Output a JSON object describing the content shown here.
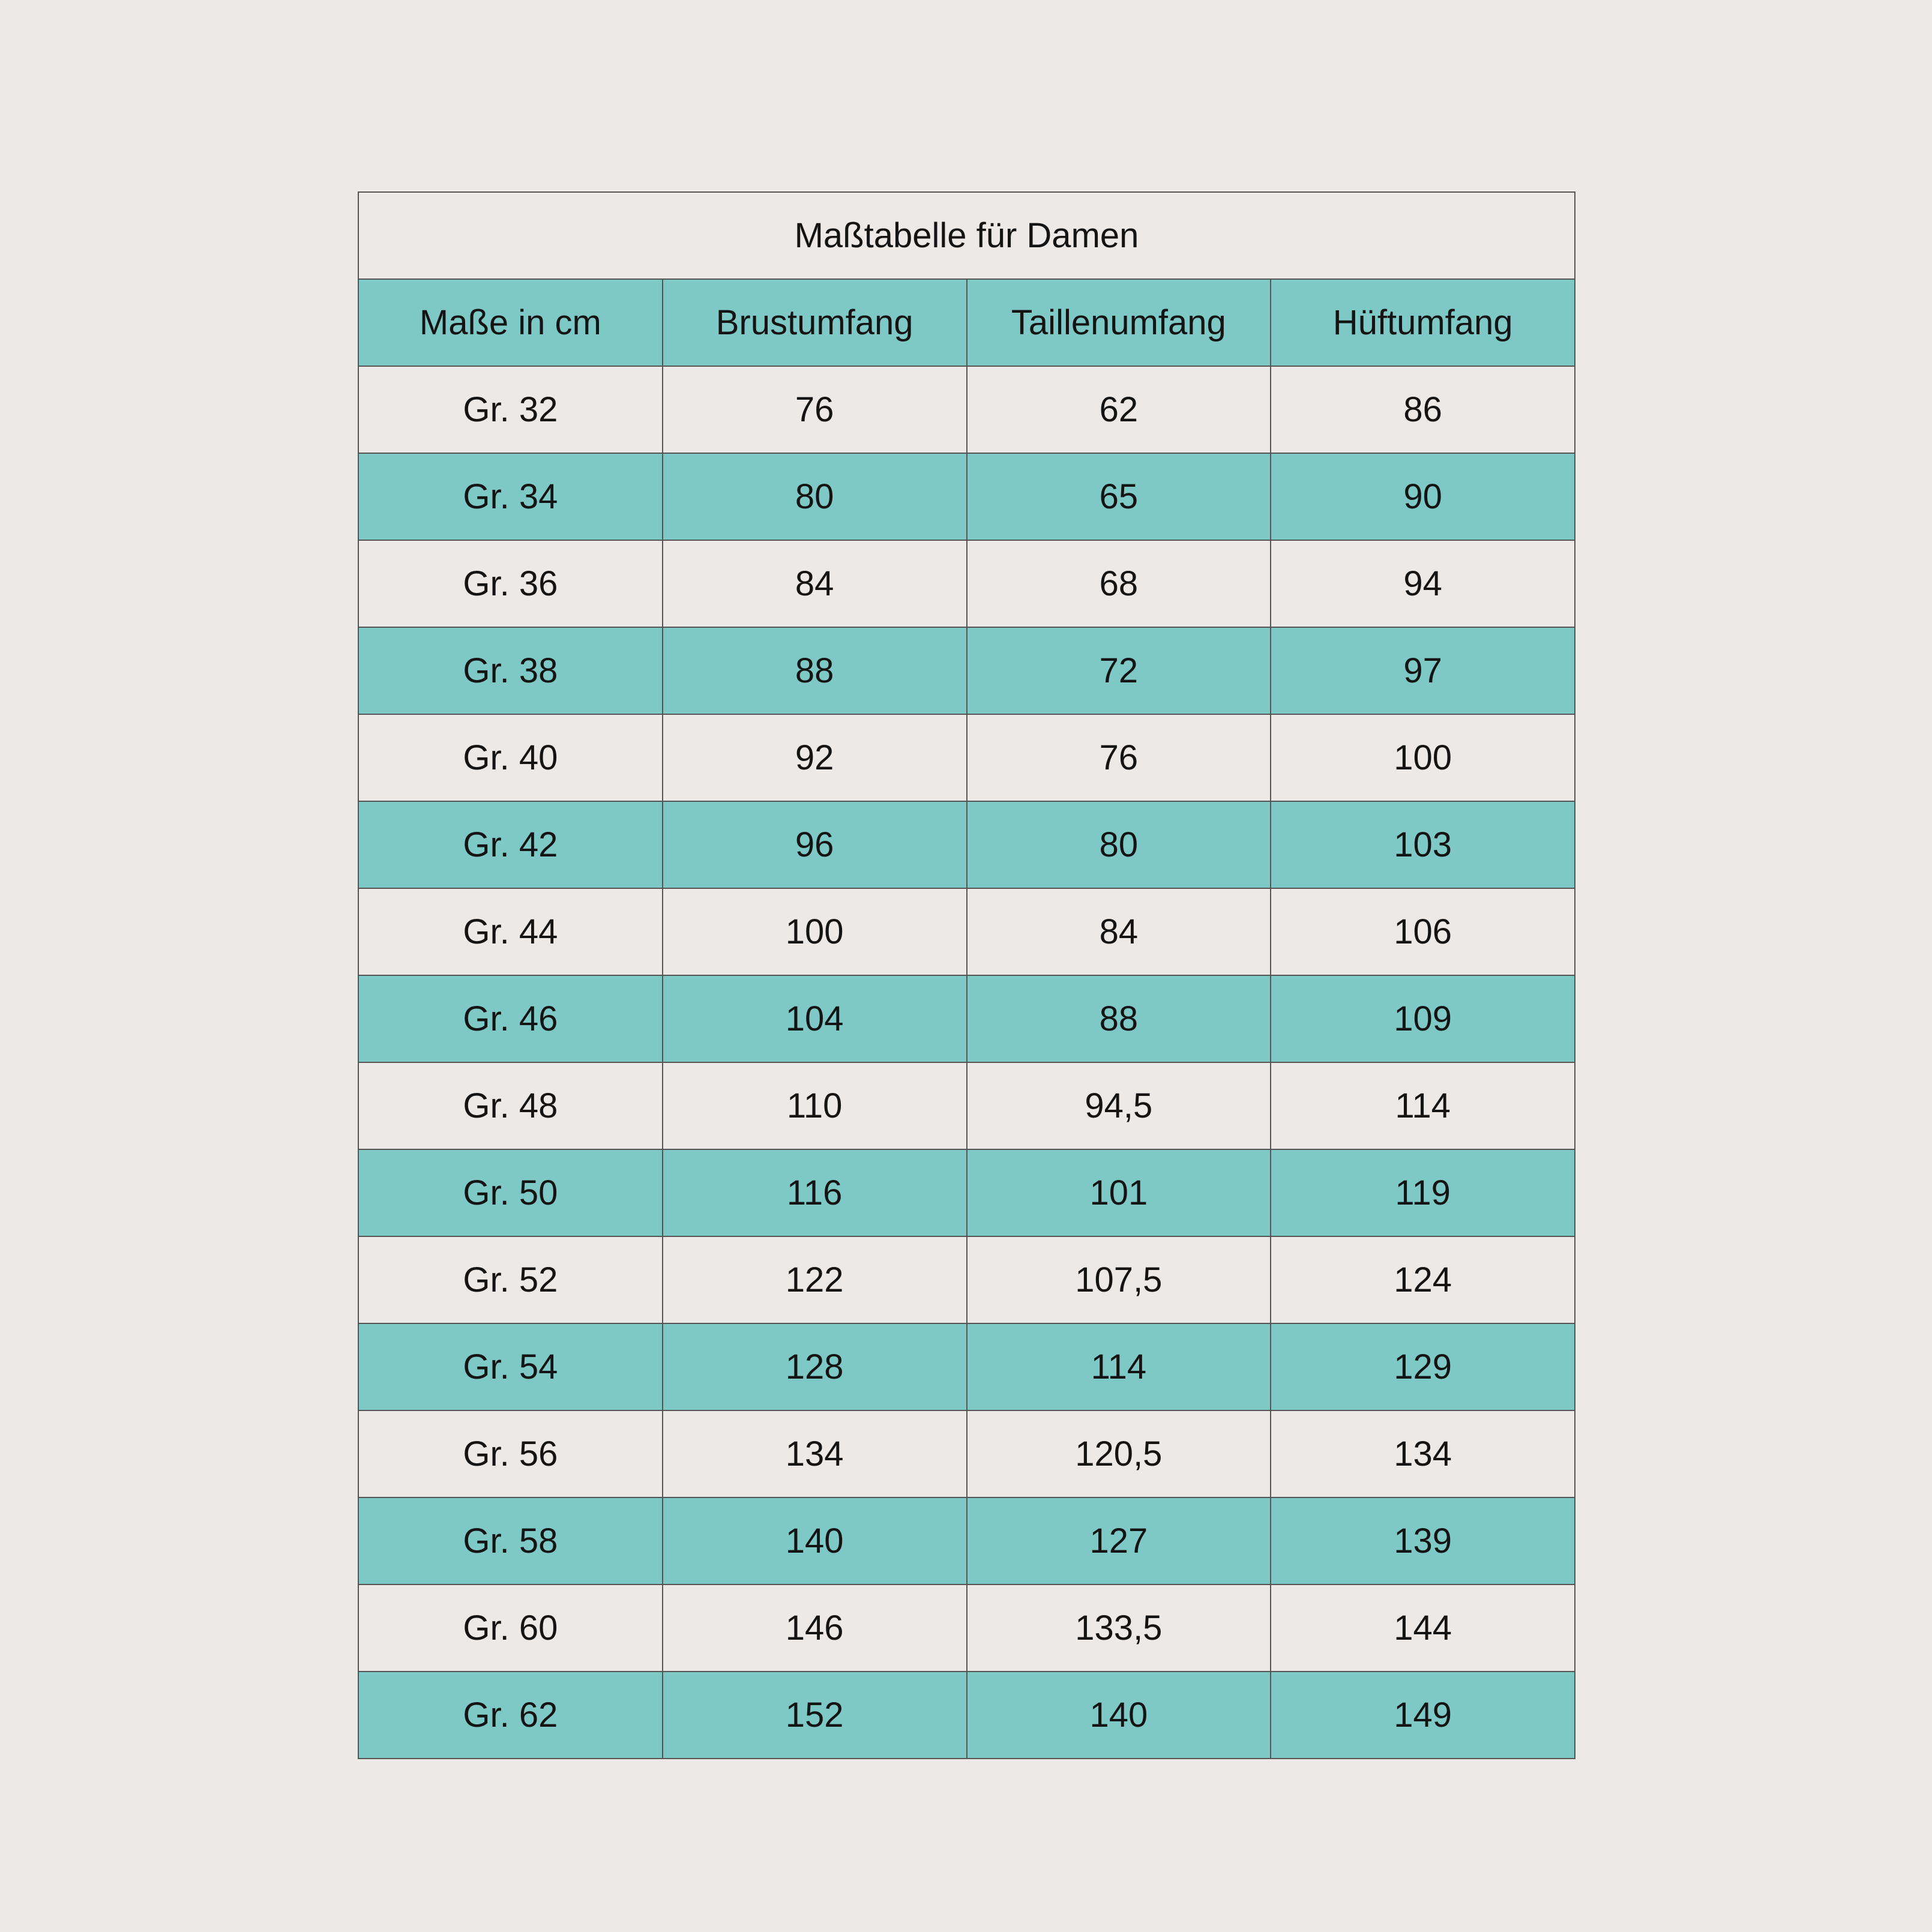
{
  "chart_data": {
    "type": "table",
    "title": "Maßtabelle für Damen",
    "columns": [
      "Maße in cm",
      "Brustumfang",
      "Taillenumfang",
      "Hüftumfang"
    ],
    "rows": [
      [
        "Gr. 32",
        "76",
        "62",
        "86"
      ],
      [
        "Gr. 34",
        "80",
        "65",
        "90"
      ],
      [
        "Gr. 36",
        "84",
        "68",
        "94"
      ],
      [
        "Gr. 38",
        "88",
        "72",
        "97"
      ],
      [
        "Gr. 40",
        "92",
        "76",
        "100"
      ],
      [
        "Gr. 42",
        "96",
        "80",
        "103"
      ],
      [
        "Gr. 44",
        "100",
        "84",
        "106"
      ],
      [
        "Gr. 46",
        "104",
        "88",
        "109"
      ],
      [
        "Gr. 48",
        "110",
        "94,5",
        "114"
      ],
      [
        "Gr. 50",
        "116",
        "101",
        "119"
      ],
      [
        "Gr. 52",
        "122",
        "107,5",
        "124"
      ],
      [
        "Gr. 54",
        "128",
        "114",
        "129"
      ],
      [
        "Gr. 56",
        "134",
        "120,5",
        "134"
      ],
      [
        "Gr. 58",
        "140",
        "127",
        "139"
      ],
      [
        "Gr. 60",
        "146",
        "133,5",
        "144"
      ],
      [
        "Gr. 62",
        "152",
        "140",
        "149"
      ]
    ],
    "layout": {
      "striped": true,
      "first_data_row_style": "light",
      "alternate_row_style": "teal",
      "header_row_style": "teal",
      "grid": true
    }
  },
  "colors": {
    "page_background": "#ECE9E7",
    "row_teal": "#7EC9C6",
    "row_light": "#ECE9E7",
    "border": "#555555",
    "text": "#141414"
  }
}
